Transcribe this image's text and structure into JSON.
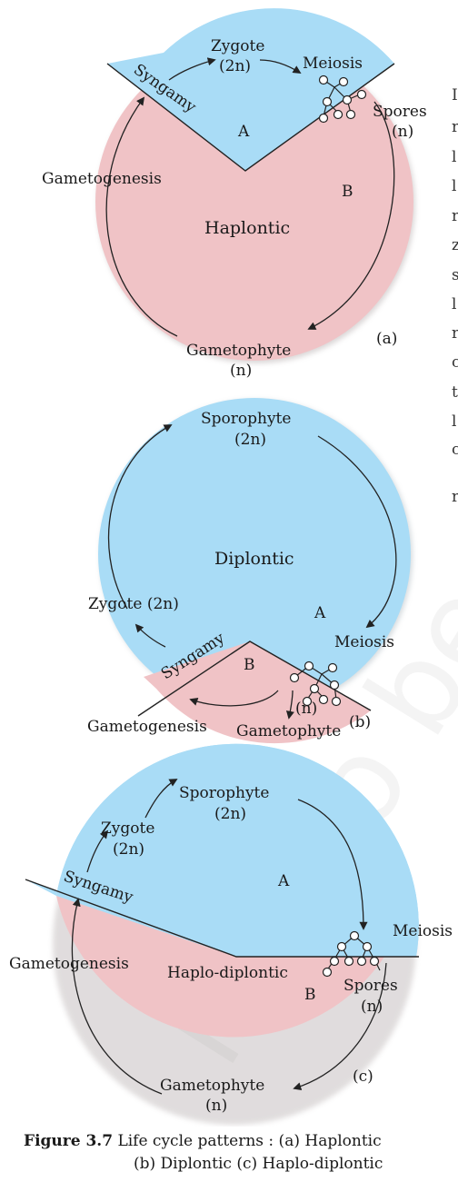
{
  "diagram_a": {
    "region_a": "A",
    "region_b": "B",
    "center": "Haplontic",
    "syngamy": "Syngamy",
    "zygote": "Zygote",
    "zygote_ploidy": "(2n)",
    "meiosis": "Meiosis",
    "spores": "Spores",
    "spores_ploidy": "(n)",
    "gametogenesis": "Gametogenesis",
    "gametophyte": "Gametophyte",
    "gametophyte_ploidy": "(n)",
    "panel": "(a)"
  },
  "diagram_b": {
    "sporophyte": "Sporophyte",
    "sporophyte_ploidy": "(2n)",
    "center": "Diplontic",
    "region_a": "A",
    "region_b": "B",
    "zygote": "Zygote (2n)",
    "syngamy": "Syngamy",
    "meiosis": "Meiosis",
    "ploidy_n": "(n)",
    "gametogenesis": "Gametogenesis",
    "gametophyte": "Gametophyte",
    "panel": "(b)"
  },
  "diagram_c": {
    "sporophyte": "Sporophyte",
    "sporophyte_ploidy": "(2n)",
    "zygote": "Zygote",
    "zygote_ploidy": "(2n)",
    "syngamy": "Syngamy",
    "region_a": "A",
    "region_b": "B",
    "meiosis": "Meiosis",
    "gametogenesis": "Gametogenesis",
    "center": "Haplo-diplontic",
    "spores": "Spores",
    "spores_ploidy": "(n)",
    "gametophyte": "Gametophyte",
    "gametophyte_ploidy": "(n)",
    "panel": "(c)"
  },
  "caption": {
    "number": "Figure 3.7",
    "line1": "Life cycle patterns : (a) Haplontic",
    "line2": "(b) Diplontic   (c) Haplo-diplontic"
  },
  "watermark": "not to be",
  "side_text": {
    "letters": [
      "I",
      "r",
      "l",
      "l",
      "r",
      "z",
      "s",
      "l",
      "r",
      "c",
      "t",
      "l",
      "c",
      "r"
    ]
  },
  "colors": {
    "diploid_fill": "#a9dcf6",
    "haploid_fill": "#f0c3c6",
    "arrow": "#222222"
  }
}
